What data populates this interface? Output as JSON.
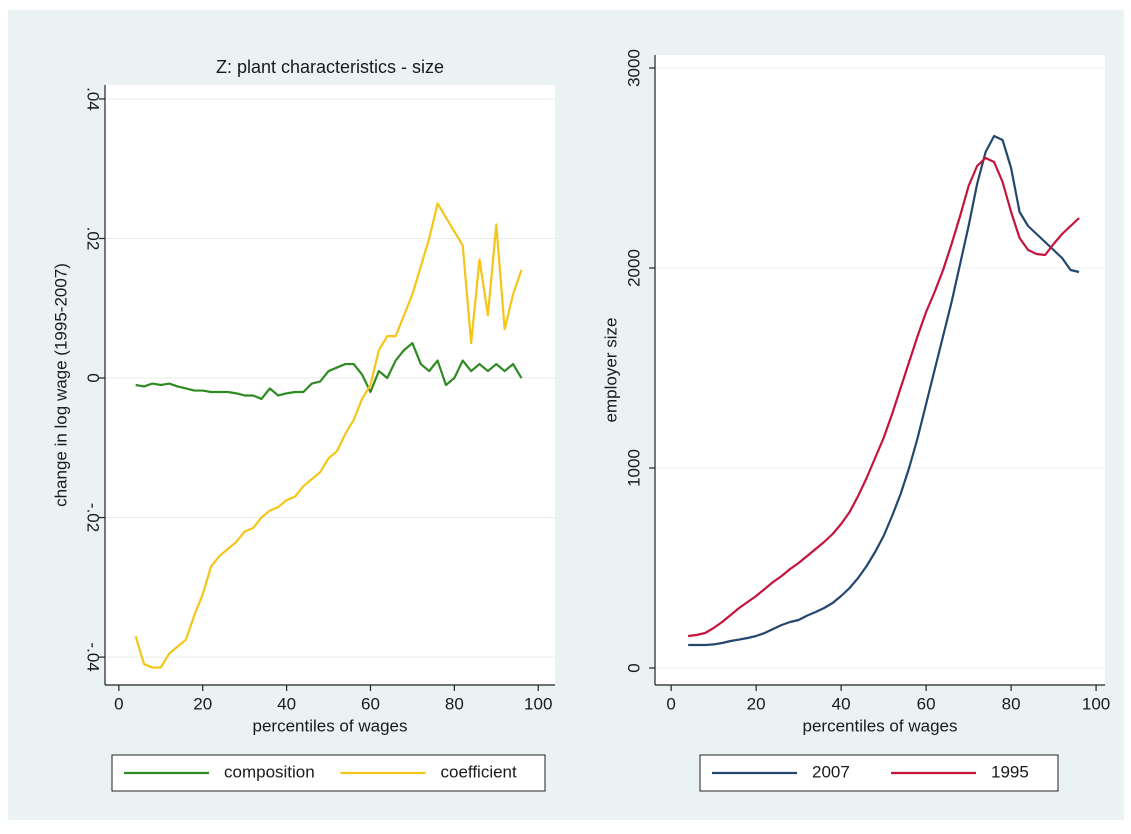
{
  "chart_data": [
    {
      "type": "line",
      "title": "Z: plant characteristics - size",
      "x_label": "percentiles of wages",
      "y_label": "change in log wage (1995-2007)",
      "x": [
        4,
        6,
        8,
        10,
        12,
        14,
        16,
        18,
        20,
        22,
        24,
        26,
        28,
        30,
        32,
        34,
        36,
        38,
        40,
        42,
        44,
        46,
        48,
        50,
        52,
        54,
        56,
        58,
        60,
        62,
        64,
        66,
        68,
        70,
        72,
        74,
        76,
        78,
        80,
        82,
        84,
        86,
        88,
        90,
        92,
        94,
        96
      ],
      "series": [
        {
          "name": "composition",
          "color": "#2e8b22",
          "values": [
            -0.001,
            -0.0012,
            -0.0008,
            -0.001,
            -0.0008,
            -0.0012,
            -0.0015,
            -0.0018,
            -0.0018,
            -0.002,
            -0.002,
            -0.002,
            -0.0022,
            -0.0025,
            -0.0025,
            -0.003,
            -0.0015,
            -0.0025,
            -0.0022,
            -0.002,
            -0.002,
            -0.0008,
            -0.0005,
            0.001,
            0.0015,
            0.002,
            0.002,
            0.0005,
            -0.002,
            0.001,
            0,
            0.0025,
            0.004,
            0.005,
            0.002,
            0.001,
            0.0025,
            -0.001,
            0,
            0.0025,
            0.001,
            0.002,
            0.001,
            0.002,
            0.001,
            0.002,
            0
          ]
        },
        {
          "name": "coefficient",
          "color": "#f5c518",
          "values": [
            -0.037,
            -0.041,
            -0.0415,
            -0.0415,
            -0.0395,
            -0.0385,
            -0.0375,
            -0.034,
            -0.031,
            -0.027,
            -0.0255,
            -0.0245,
            -0.0235,
            -0.022,
            -0.0215,
            -0.02,
            -0.019,
            -0.0185,
            -0.0175,
            -0.017,
            -0.0155,
            -0.0145,
            -0.0135,
            -0.0115,
            -0.0105,
            -0.008,
            -0.006,
            -0.003,
            -0.001,
            0.004,
            0.006,
            0.006,
            0.009,
            0.012,
            0.016,
            0.02,
            0.025,
            0.023,
            0.021,
            0.019,
            0.005,
            0.017,
            0.009,
            0.022,
            0.007,
            0.012,
            0.0155
          ]
        }
      ],
      "xlim": [
        -3.3,
        104
      ],
      "xticks": [
        0,
        20,
        40,
        60,
        80,
        100
      ],
      "ylim": [
        -0.044,
        0.042
      ],
      "yticks": [
        {
          "value": -0.04,
          "label": "-.04"
        },
        {
          "value": -0.02,
          "label": "-.02"
        },
        0,
        {
          "value": 0.02,
          "label": ".02"
        },
        {
          "value": 0.04,
          "label": ".04"
        }
      ],
      "grid": true
    },
    {
      "type": "line",
      "x_label": "percentiles of wages",
      "y_label": "employer size",
      "x": [
        4,
        6,
        8,
        10,
        12,
        14,
        16,
        18,
        20,
        22,
        24,
        26,
        28,
        30,
        32,
        34,
        36,
        38,
        40,
        42,
        44,
        46,
        48,
        50,
        52,
        54,
        56,
        58,
        60,
        62,
        64,
        66,
        68,
        70,
        72,
        74,
        76,
        78,
        80,
        82,
        84,
        86,
        88,
        90,
        92,
        94,
        96
      ],
      "series": [
        {
          "name": "2007",
          "color": "#23476e",
          "values": [
            115,
            115,
            115,
            118,
            125,
            135,
            142,
            150,
            160,
            175,
            195,
            215,
            230,
            240,
            262,
            280,
            300,
            325,
            360,
            400,
            450,
            510,
            580,
            660,
            760,
            870,
            1000,
            1150,
            1320,
            1490,
            1660,
            1830,
            2020,
            2210,
            2420,
            2580,
            2660,
            2640,
            2500,
            2280,
            2210,
            2170,
            2130,
            2090,
            2050,
            1990,
            1980
          ]
        },
        {
          "name": "1995",
          "color": "#c4143c",
          "values": [
            160,
            165,
            175,
            200,
            230,
            265,
            300,
            330,
            360,
            395,
            430,
            460,
            495,
            525,
            560,
            595,
            630,
            670,
            720,
            780,
            860,
            950,
            1050,
            1150,
            1270,
            1400,
            1530,
            1660,
            1780,
            1880,
            1990,
            2120,
            2260,
            2410,
            2510,
            2550,
            2530,
            2430,
            2280,
            2150,
            2090,
            2070,
            2065,
            2120,
            2170,
            2210,
            2250
          ]
        }
      ],
      "xlim": [
        -3.8,
        102.1
      ],
      "xticks": [
        0,
        20,
        40,
        60,
        80,
        100
      ],
      "ylim": [
        -85,
        3065
      ],
      "yticks": [
        0,
        1000,
        2000,
        3000
      ],
      "grid": true
    }
  ]
}
